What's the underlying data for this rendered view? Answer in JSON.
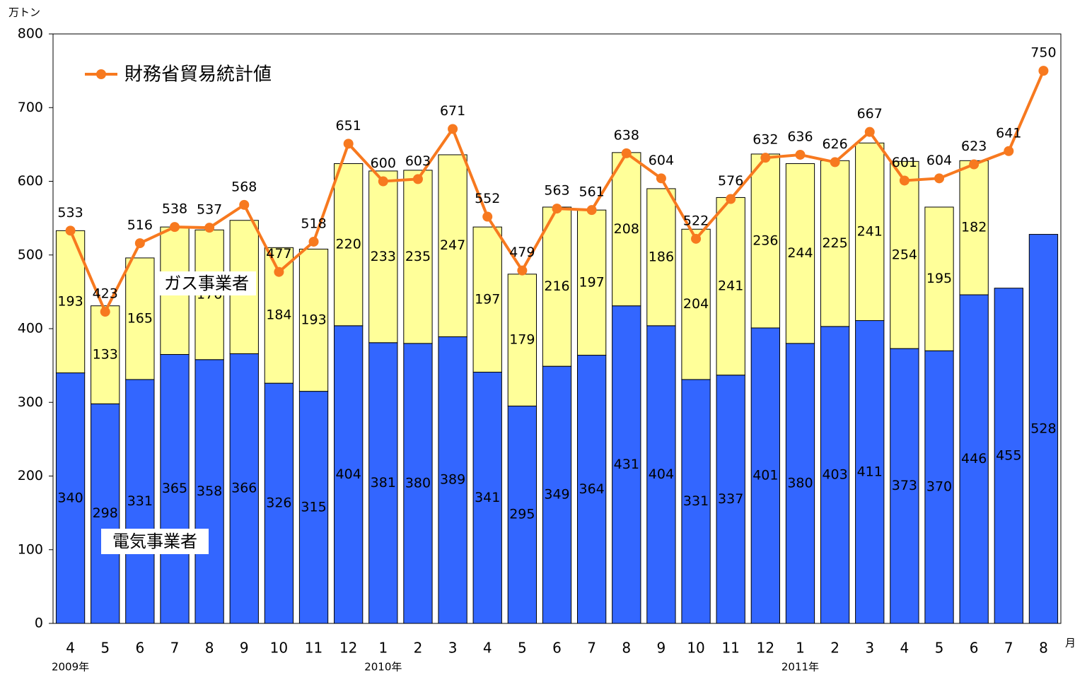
{
  "chart_data": {
    "type": "stacked_bar_line",
    "y_unit": "万トン",
    "x_unit": "月",
    "categories": [
      "4",
      "5",
      "6",
      "7",
      "8",
      "9",
      "10",
      "11",
      "12",
      "1",
      "2",
      "3",
      "4",
      "5",
      "6",
      "7",
      "8",
      "9",
      "10",
      "11",
      "12",
      "1",
      "2",
      "3",
      "4",
      "5",
      "6",
      "7",
      "8"
    ],
    "year_labels": [
      "2009年",
      null,
      null,
      null,
      null,
      null,
      null,
      null,
      null,
      "2010年",
      null,
      null,
      null,
      null,
      null,
      null,
      null,
      null,
      null,
      null,
      null,
      "2011年",
      null,
      null,
      null,
      null,
      null,
      null,
      null
    ],
    "series": [
      {
        "name": "電気事業者",
        "kind": "bar",
        "color": "#3366ff",
        "label_color": "#ffffff",
        "values": [
          340,
          298,
          331,
          365,
          358,
          366,
          326,
          315,
          404,
          381,
          380,
          389,
          341,
          295,
          349,
          364,
          431,
          404,
          331,
          337,
          401,
          380,
          403,
          411,
          373,
          370,
          446,
          455,
          528
        ]
      },
      {
        "name": "ガス事業者",
        "kind": "bar",
        "color": "#ffff99",
        "label_color": "#000000",
        "values": [
          193,
          133,
          165,
          173,
          176,
          181,
          184,
          193,
          220,
          233,
          235,
          247,
          197,
          179,
          216,
          197,
          208,
          186,
          204,
          241,
          236,
          244,
          225,
          241,
          254,
          195,
          182,
          null,
          null
        ]
      },
      {
        "name": "財務省貿易統計値",
        "kind": "line",
        "color": "#f7791f",
        "label_color": "#000000",
        "values": [
          533,
          423,
          516,
          538,
          537,
          568,
          477,
          518,
          651,
          600,
          603,
          671,
          552,
          479,
          563,
          561,
          638,
          604,
          522,
          576,
          632,
          636,
          626,
          667,
          601,
          604,
          623,
          641,
          750
        ]
      }
    ],
    "ylim": [
      0,
      800
    ],
    "yticks": [
      0,
      100,
      200,
      300,
      400,
      500,
      600,
      700,
      800
    ],
    "grid": false,
    "legend": "top-left"
  }
}
